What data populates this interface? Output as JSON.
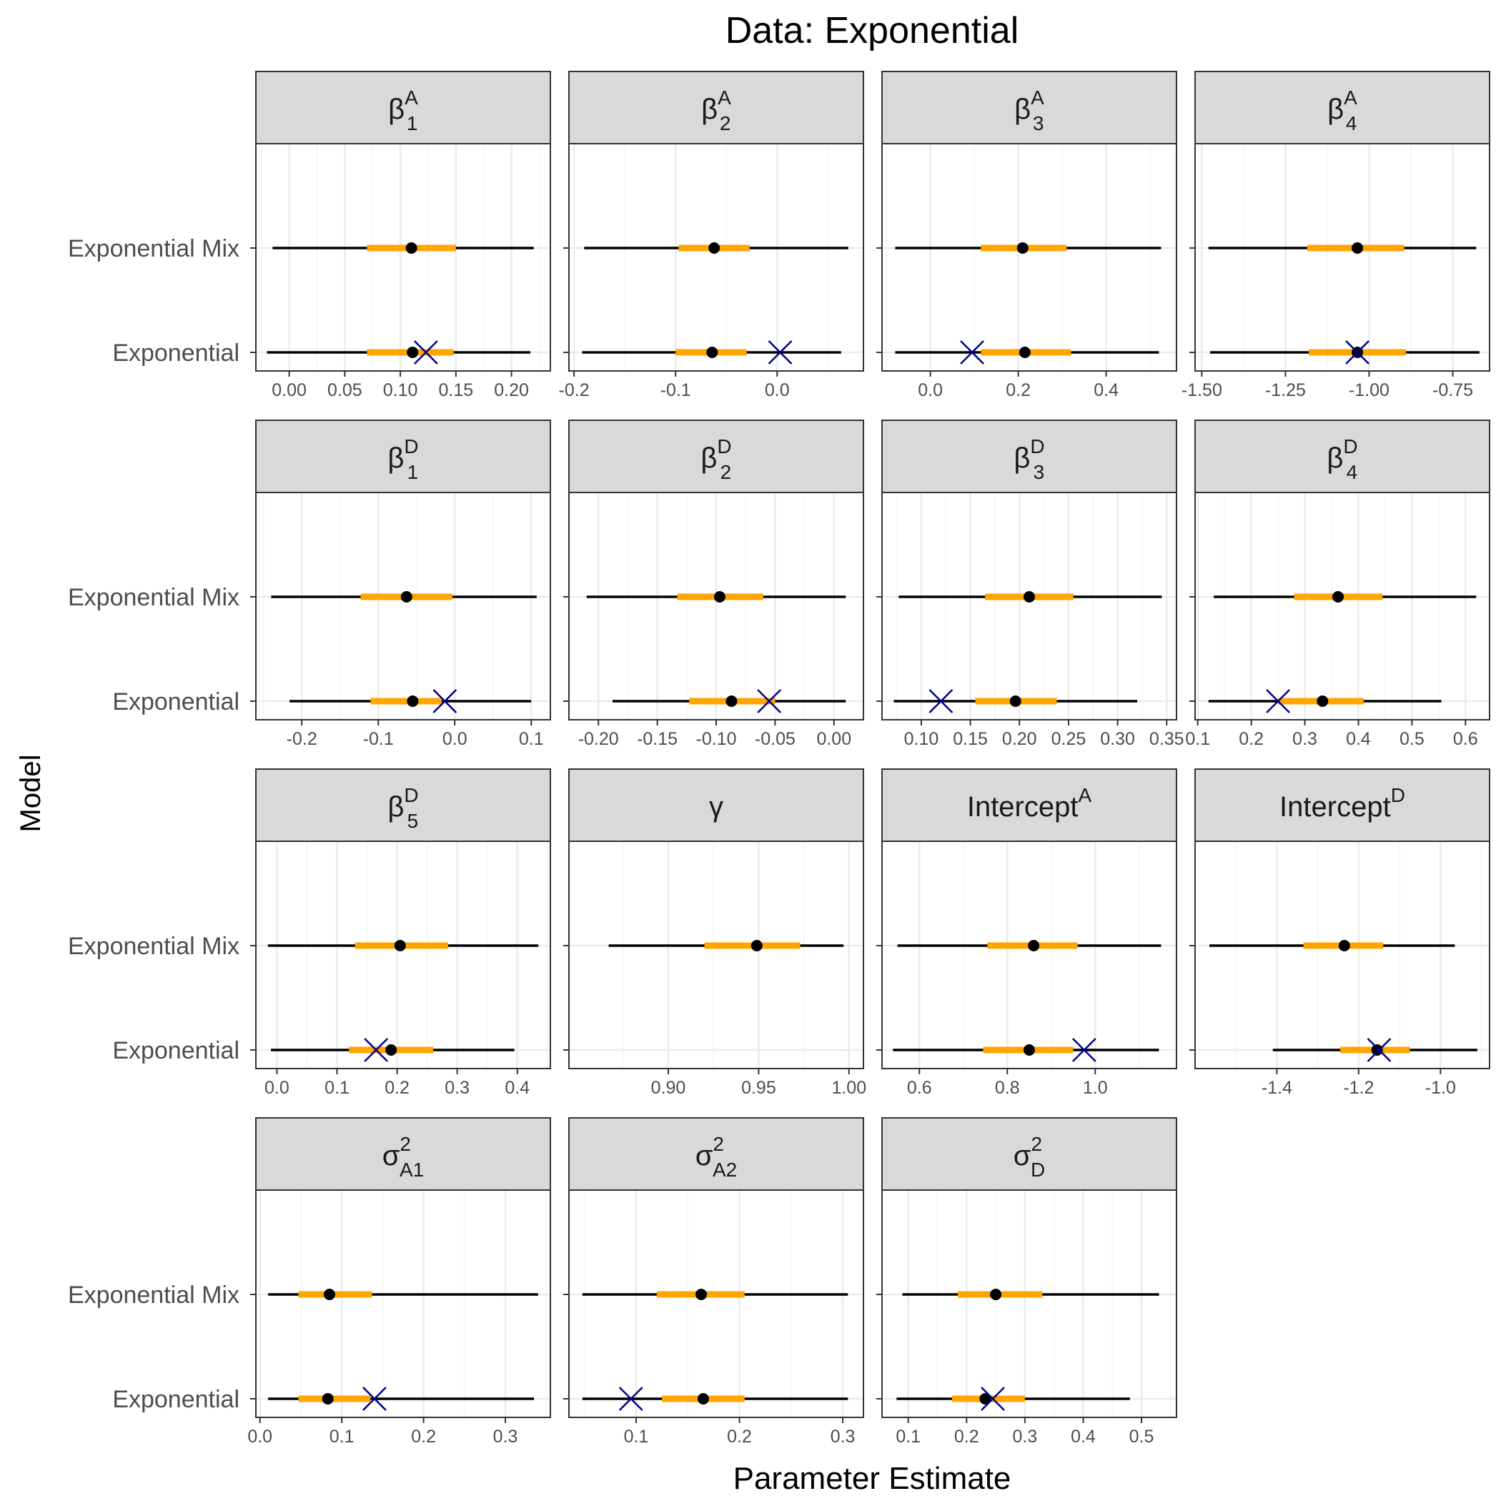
{
  "figure": {
    "title": "Data: Exponential",
    "xlabel": "Parameter Estimate",
    "ylabel": "Model",
    "models": [
      "Exponential Mix",
      "Exponential"
    ],
    "colors": {
      "interval_outer": "#000000",
      "interval_inner": "#FFA500",
      "point": "#000000",
      "true_value": "#00008B",
      "strip_fill": "#D9D9D9",
      "panel_border": "#333333",
      "grid_major": "#EBEBEB",
      "grid_minor": "#F5F5F5"
    }
  },
  "chart_data": [
    {
      "type": "interval",
      "panel_label": {
        "base": "β",
        "sup": "A",
        "sub": "1"
      },
      "xlim": [
        -0.03,
        0.235
      ],
      "ticks": [
        0.0,
        0.05,
        0.1,
        0.15,
        0.2
      ],
      "tick_labels": [
        "0.00",
        "0.05",
        "0.10",
        "0.15",
        "0.20"
      ],
      "series": [
        {
          "name": "Exponential Mix",
          "outer": [
            -0.015,
            0.22
          ],
          "inner": [
            0.07,
            0.15
          ],
          "point": 0.11,
          "true_value": null
        },
        {
          "name": "Exponential",
          "outer": [
            -0.02,
            0.217
          ],
          "inner": [
            0.07,
            0.148
          ],
          "point": 0.111,
          "true_value": 0.123
        }
      ]
    },
    {
      "type": "interval",
      "panel_label": {
        "base": "β",
        "sup": "A",
        "sub": "2"
      },
      "xlim": [
        -0.205,
        0.085
      ],
      "ticks": [
        -0.2,
        -0.1,
        0.0
      ],
      "tick_labels": [
        "-0.2",
        "-0.1",
        "0.0"
      ],
      "series": [
        {
          "name": "Exponential Mix",
          "outer": [
            -0.19,
            0.07
          ],
          "inner": [
            -0.097,
            -0.027
          ],
          "point": -0.062,
          "true_value": null
        },
        {
          "name": "Exponential",
          "outer": [
            -0.192,
            0.063
          ],
          "inner": [
            -0.1,
            -0.03
          ],
          "point": -0.064,
          "true_value": 0.003
        }
      ]
    },
    {
      "type": "interval",
      "panel_label": {
        "base": "β",
        "sup": "A",
        "sub": "3"
      },
      "xlim": [
        -0.11,
        0.56
      ],
      "ticks": [
        0.0,
        0.2,
        0.4
      ],
      "tick_labels": [
        "0.0",
        "0.2",
        "0.4"
      ],
      "series": [
        {
          "name": "Exponential Mix",
          "outer": [
            -0.08,
            0.525
          ],
          "inner": [
            0.115,
            0.31
          ],
          "point": 0.21,
          "true_value": null
        },
        {
          "name": "Exponential",
          "outer": [
            -0.08,
            0.52
          ],
          "inner": [
            0.115,
            0.32
          ],
          "point": 0.215,
          "true_value": 0.095
        }
      ]
    },
    {
      "type": "interval",
      "panel_label": {
        "base": "β",
        "sup": "A",
        "sub": "4"
      },
      "xlim": [
        -1.52,
        -0.64
      ],
      "ticks": [
        -1.5,
        -1.25,
        -1.0,
        -0.75
      ],
      "tick_labels": [
        "-1.50",
        "-1.25",
        "-1.00",
        "-0.75"
      ],
      "series": [
        {
          "name": "Exponential Mix",
          "outer": [
            -1.48,
            -0.68
          ],
          "inner": [
            -1.185,
            -0.895
          ],
          "point": -1.035,
          "true_value": null
        },
        {
          "name": "Exponential",
          "outer": [
            -1.475,
            -0.67
          ],
          "inner": [
            -1.18,
            -0.89
          ],
          "point": -1.035,
          "true_value": -1.035
        }
      ]
    },
    {
      "type": "interval",
      "panel_label": {
        "base": "β",
        "sup": "D",
        "sub": "1"
      },
      "xlim": [
        -0.26,
        0.125
      ],
      "ticks": [
        -0.2,
        -0.1,
        0.0,
        0.1
      ],
      "tick_labels": [
        "-0.2",
        "-0.1",
        "0.0",
        "0.1"
      ],
      "series": [
        {
          "name": "Exponential Mix",
          "outer": [
            -0.24,
            0.107
          ],
          "inner": [
            -0.123,
            -0.003
          ],
          "point": -0.063,
          "true_value": null
        },
        {
          "name": "Exponential",
          "outer": [
            -0.216,
            0.1
          ],
          "inner": [
            -0.11,
            -0.017
          ],
          "point": -0.055,
          "true_value": -0.013
        }
      ]
    },
    {
      "type": "interval",
      "panel_label": {
        "base": "β",
        "sup": "D",
        "sub": "2"
      },
      "xlim": [
        -0.225,
        0.025
      ],
      "ticks": [
        -0.2,
        -0.15,
        -0.1,
        -0.05,
        0.0
      ],
      "tick_labels": [
        "-0.20",
        "-0.15",
        "-0.10",
        "-0.05",
        "0.00"
      ],
      "series": [
        {
          "name": "Exponential Mix",
          "outer": [
            -0.21,
            0.01
          ],
          "inner": [
            -0.133,
            -0.06
          ],
          "point": -0.097,
          "true_value": null
        },
        {
          "name": "Exponential",
          "outer": [
            -0.188,
            0.01
          ],
          "inner": [
            -0.123,
            -0.05
          ],
          "point": -0.087,
          "true_value": -0.055
        }
      ]
    },
    {
      "type": "interval",
      "panel_label": {
        "base": "β",
        "sup": "D",
        "sub": "3"
      },
      "xlim": [
        0.06,
        0.36
      ],
      "ticks": [
        0.1,
        0.15,
        0.2,
        0.25,
        0.3,
        0.35
      ],
      "tick_labels": [
        "0.10",
        "0.15",
        "0.20",
        "0.25",
        "0.30",
        "0.35"
      ],
      "series": [
        {
          "name": "Exponential Mix",
          "outer": [
            0.077,
            0.345
          ],
          "inner": [
            0.165,
            0.255
          ],
          "point": 0.21,
          "true_value": null
        },
        {
          "name": "Exponential",
          "outer": [
            0.072,
            0.32
          ],
          "inner": [
            0.155,
            0.238
          ],
          "point": 0.196,
          "true_value": 0.12
        }
      ]
    },
    {
      "type": "interval",
      "panel_label": {
        "base": "β",
        "sup": "D",
        "sub": "4"
      },
      "xlim": [
        0.095,
        0.645
      ],
      "ticks": [
        0.1,
        0.2,
        0.3,
        0.4,
        0.5,
        0.6
      ],
      "tick_labels": [
        "0.1",
        "0.2",
        "0.3",
        "0.4",
        "0.5",
        "0.6"
      ],
      "series": [
        {
          "name": "Exponential Mix",
          "outer": [
            0.13,
            0.62
          ],
          "inner": [
            0.28,
            0.445
          ],
          "point": 0.362,
          "true_value": null
        },
        {
          "name": "Exponential",
          "outer": [
            0.12,
            0.555
          ],
          "inner": [
            0.25,
            0.41
          ],
          "point": 0.333,
          "true_value": 0.25
        }
      ]
    },
    {
      "type": "interval",
      "panel_label": {
        "base": "β",
        "sup": "D",
        "sub": "5"
      },
      "xlim": [
        -0.035,
        0.455
      ],
      "ticks": [
        0.0,
        0.1,
        0.2,
        0.3,
        0.4
      ],
      "tick_labels": [
        "0.0",
        "0.1",
        "0.2",
        "0.3",
        "0.4"
      ],
      "series": [
        {
          "name": "Exponential Mix",
          "outer": [
            -0.015,
            0.435
          ],
          "inner": [
            0.13,
            0.285
          ],
          "point": 0.205,
          "true_value": null
        },
        {
          "name": "Exponential",
          "outer": [
            -0.01,
            0.395
          ],
          "inner": [
            0.12,
            0.26
          ],
          "point": 0.19,
          "true_value": 0.165
        }
      ]
    },
    {
      "type": "interval",
      "panel_label": {
        "base": "γ",
        "sup": "",
        "sub": ""
      },
      "xlim": [
        0.845,
        1.008
      ],
      "ticks": [
        0.9,
        0.95,
        1.0
      ],
      "tick_labels": [
        "0.90",
        "0.95",
        "1.00"
      ],
      "series": [
        {
          "name": "Exponential Mix",
          "outer": [
            0.867,
            0.997
          ],
          "inner": [
            0.92,
            0.973
          ],
          "point": 0.949,
          "true_value": null
        }
      ]
    },
    {
      "type": "interval",
      "panel_label": {
        "base": "Intercept",
        "sup": "A",
        "sub": ""
      },
      "xlim": [
        0.515,
        1.185
      ],
      "ticks": [
        0.6,
        0.8,
        1.0
      ],
      "tick_labels": [
        "0.6",
        "0.8",
        "1.0"
      ],
      "series": [
        {
          "name": "Exponential Mix",
          "outer": [
            0.55,
            1.15
          ],
          "inner": [
            0.755,
            0.96
          ],
          "point": 0.86,
          "true_value": null
        },
        {
          "name": "Exponential",
          "outer": [
            0.54,
            1.145
          ],
          "inner": [
            0.745,
            0.95
          ],
          "point": 0.85,
          "true_value": 0.975
        }
      ]
    },
    {
      "type": "interval",
      "panel_label": {
        "base": "Intercept",
        "sup": "D",
        "sub": ""
      },
      "xlim": [
        -1.6,
        -0.88
      ],
      "ticks": [
        -1.4,
        -1.2,
        -1.0
      ],
      "tick_labels": [
        "-1.4",
        "-1.2",
        "-1.0"
      ],
      "series": [
        {
          "name": "Exponential Mix",
          "outer": [
            -1.565,
            -0.965
          ],
          "inner": [
            -1.335,
            -1.14
          ],
          "point": -1.235,
          "true_value": null
        },
        {
          "name": "Exponential",
          "outer": [
            -1.41,
            -0.91
          ],
          "inner": [
            -1.245,
            -1.075
          ],
          "point": -1.155,
          "true_value": -1.15
        }
      ]
    },
    {
      "type": "interval",
      "panel_label": {
        "base": "σ",
        "sup": "2",
        "sub": "A1"
      },
      "xlim": [
        -0.005,
        0.355
      ],
      "ticks": [
        0.0,
        0.1,
        0.2,
        0.3
      ],
      "tick_labels": [
        "0.0",
        "0.1",
        "0.2",
        "0.3"
      ],
      "series": [
        {
          "name": "Exponential Mix",
          "outer": [
            0.01,
            0.34
          ],
          "inner": [
            0.047,
            0.137
          ],
          "point": 0.085,
          "true_value": null
        },
        {
          "name": "Exponential",
          "outer": [
            0.01,
            0.335
          ],
          "inner": [
            0.047,
            0.135
          ],
          "point": 0.083,
          "true_value": 0.14
        }
      ]
    },
    {
      "type": "interval",
      "panel_label": {
        "base": "σ",
        "sup": "2",
        "sub": "A2"
      },
      "xlim": [
        0.035,
        0.32
      ],
      "ticks": [
        0.1,
        0.2,
        0.3
      ],
      "tick_labels": [
        "0.1",
        "0.2",
        "0.3"
      ],
      "series": [
        {
          "name": "Exponential Mix",
          "outer": [
            0.048,
            0.305
          ],
          "inner": [
            0.12,
            0.205
          ],
          "point": 0.163,
          "true_value": null
        },
        {
          "name": "Exponential",
          "outer": [
            0.048,
            0.305
          ],
          "inner": [
            0.125,
            0.205
          ],
          "point": 0.165,
          "true_value": 0.095
        }
      ]
    },
    {
      "type": "interval",
      "panel_label": {
        "base": "σ",
        "sup": "2",
        "sub": "D"
      },
      "xlim": [
        0.055,
        0.56
      ],
      "ticks": [
        0.1,
        0.2,
        0.3,
        0.4,
        0.5
      ],
      "tick_labels": [
        "0.1",
        "0.2",
        "0.3",
        "0.4",
        "0.5"
      ],
      "series": [
        {
          "name": "Exponential Mix",
          "outer": [
            0.09,
            0.53
          ],
          "inner": [
            0.185,
            0.33
          ],
          "point": 0.25,
          "true_value": null
        },
        {
          "name": "Exponential",
          "outer": [
            0.08,
            0.48
          ],
          "inner": [
            0.175,
            0.3
          ],
          "point": 0.232,
          "true_value": 0.245
        }
      ]
    }
  ]
}
